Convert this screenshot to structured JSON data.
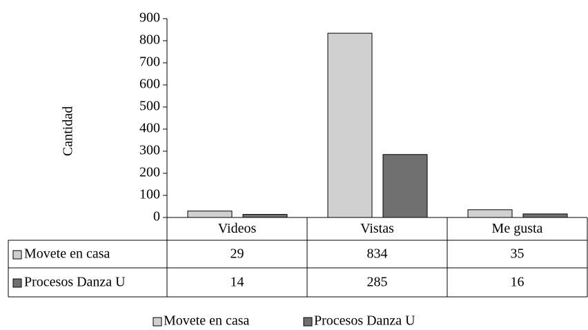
{
  "chart_data": {
    "type": "bar",
    "y_label": "Cantidad",
    "categories": [
      "Videos",
      "Vistas",
      "Me gusta"
    ],
    "series": [
      {
        "name": "Movete en casa",
        "color": "#d0d0d0",
        "values": [
          29,
          834,
          35
        ]
      },
      {
        "name": "Procesos Danza U",
        "color": "#707070",
        "values": [
          14,
          285,
          16
        ]
      }
    ],
    "ylim": [
      0,
      900
    ],
    "yticks": [
      0,
      100,
      200,
      300,
      400,
      500,
      600,
      700,
      800,
      900
    ],
    "grid": false,
    "legend": "bottom",
    "data_table": true
  }
}
